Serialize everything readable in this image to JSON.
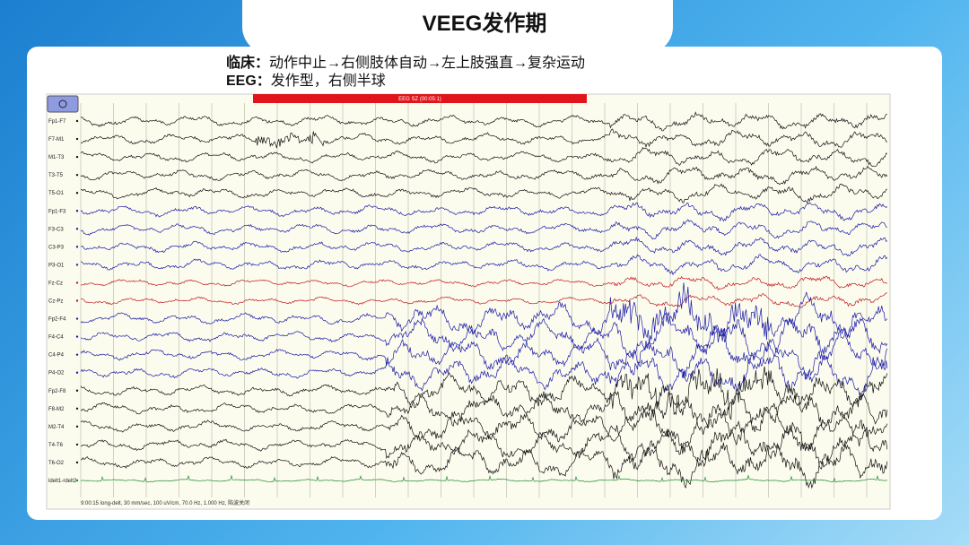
{
  "header": {
    "title": "VEEG发作期"
  },
  "notes": [
    {
      "label": "临床：",
      "text": "动作中止→右侧肢体自动→左上肢强直→复杂运动"
    },
    {
      "label": "EEG：",
      "text": "发作型，右侧半球"
    }
  ],
  "eeg": {
    "event": "EEG SZ (00:05:1)",
    "status": "9:00:15 long-delt, 30 mm/sec, 100 uV/cm, 70.0 Hz, 1.000 Hz, 陷波关闭",
    "channels": [
      {
        "name": "Fp1-F7",
        "color": "#111111"
      },
      {
        "name": "F7-M1",
        "color": "#111111"
      },
      {
        "name": "M1-T3",
        "color": "#111111"
      },
      {
        "name": "T3-T5",
        "color": "#111111"
      },
      {
        "name": "T5-O1",
        "color": "#111111"
      },
      {
        "name": "Fp1-F3",
        "color": "#1a1aa8"
      },
      {
        "name": "F3-C3",
        "color": "#1a1aa8"
      },
      {
        "name": "C3-P3",
        "color": "#1a1aa8"
      },
      {
        "name": "P3-O1",
        "color": "#1a1aa8"
      },
      {
        "name": "Fz-Cz",
        "color": "#c0181c"
      },
      {
        "name": "Cz-Pz",
        "color": "#c0181c"
      },
      {
        "name": "Fp2-F4",
        "color": "#1a1aa8"
      },
      {
        "name": "F4-C4",
        "color": "#1a1aa8"
      },
      {
        "name": "C4-P4",
        "color": "#1a1aa8"
      },
      {
        "name": "P4-O2",
        "color": "#1a1aa8"
      },
      {
        "name": "Fp2-F8",
        "color": "#111111"
      },
      {
        "name": "F8-M2",
        "color": "#111111"
      },
      {
        "name": "M2-T4",
        "color": "#111111"
      },
      {
        "name": "T4-T6",
        "color": "#111111"
      },
      {
        "name": "T6-O2",
        "color": "#111111"
      },
      {
        "name": "ldelt1-rdelt2",
        "color": "#1c8a2c"
      }
    ]
  }
}
